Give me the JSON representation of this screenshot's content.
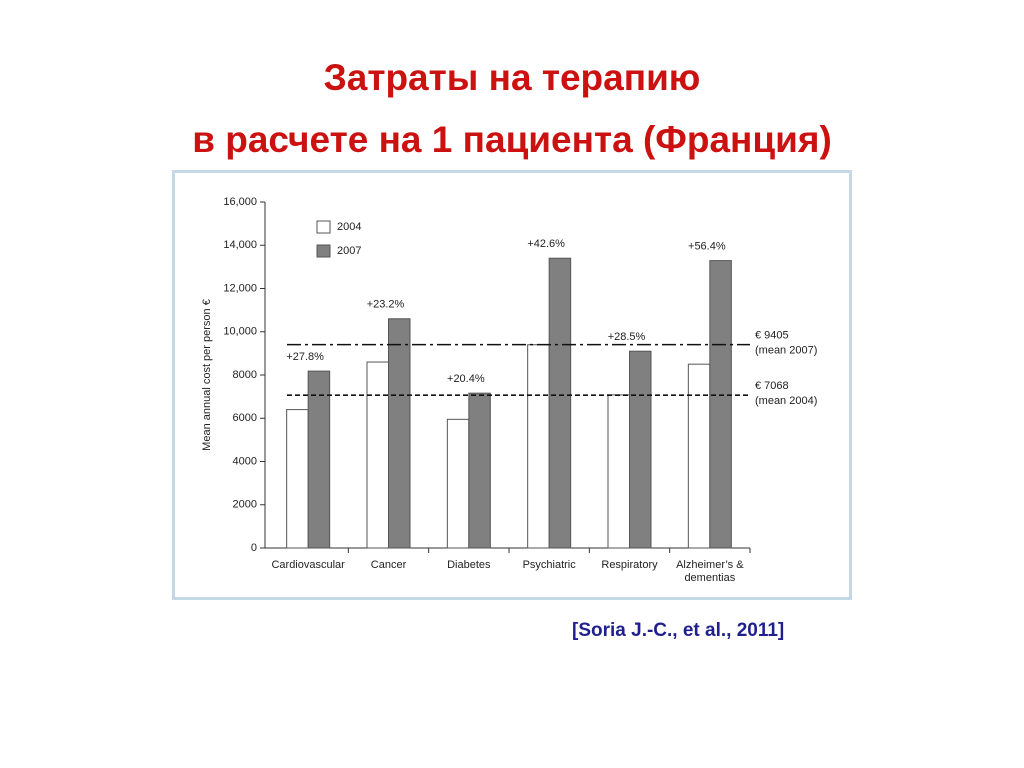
{
  "slide": {
    "title": [
      "Затраты на терапию",
      "в расчете на 1 пациента (Франция)"
    ],
    "citation": "[Soria J.-C., et al., 2011]"
  },
  "chart_data": {
    "type": "bar",
    "y_label": "Mean annual cost per person €",
    "categories": [
      "Cardiovascular",
      "Cancer",
      "Diabetes",
      "Psychiatric",
      "Respiratory",
      "Alzheimer’s & dementias"
    ],
    "series": [
      {
        "name": "2004",
        "color": "#ffffff",
        "values": [
          6400,
          8600,
          5950,
          9400,
          7080,
          8500
        ]
      },
      {
        "name": "2007",
        "color": "#808080",
        "values": [
          8180,
          10600,
          7160,
          13400,
          9100,
          13290
        ]
      }
    ],
    "change_labels": [
      "+27.8%",
      "+23.2%",
      "+20.4%",
      "+42.6%",
      "+28.5%",
      "+56.4%"
    ],
    "reference_lines": [
      {
        "value": 9405,
        "label": "€ 9405",
        "note": "(mean 2007)",
        "style": "dashdot"
      },
      {
        "value": 7068,
        "label": "€ 7068",
        "note": "(mean 2004)",
        "style": "dashed"
      }
    ],
    "ylim": [
      0,
      16000
    ],
    "yticks": [
      0,
      2000,
      4000,
      6000,
      8000,
      {
        "value": 10000,
        "label": "10,000"
      },
      {
        "value": 12000,
        "label": "12,000"
      },
      {
        "value": 14000,
        "label": "14,000"
      },
      {
        "value": 16000,
        "label": "16,000"
      }
    ],
    "grid": false
  }
}
